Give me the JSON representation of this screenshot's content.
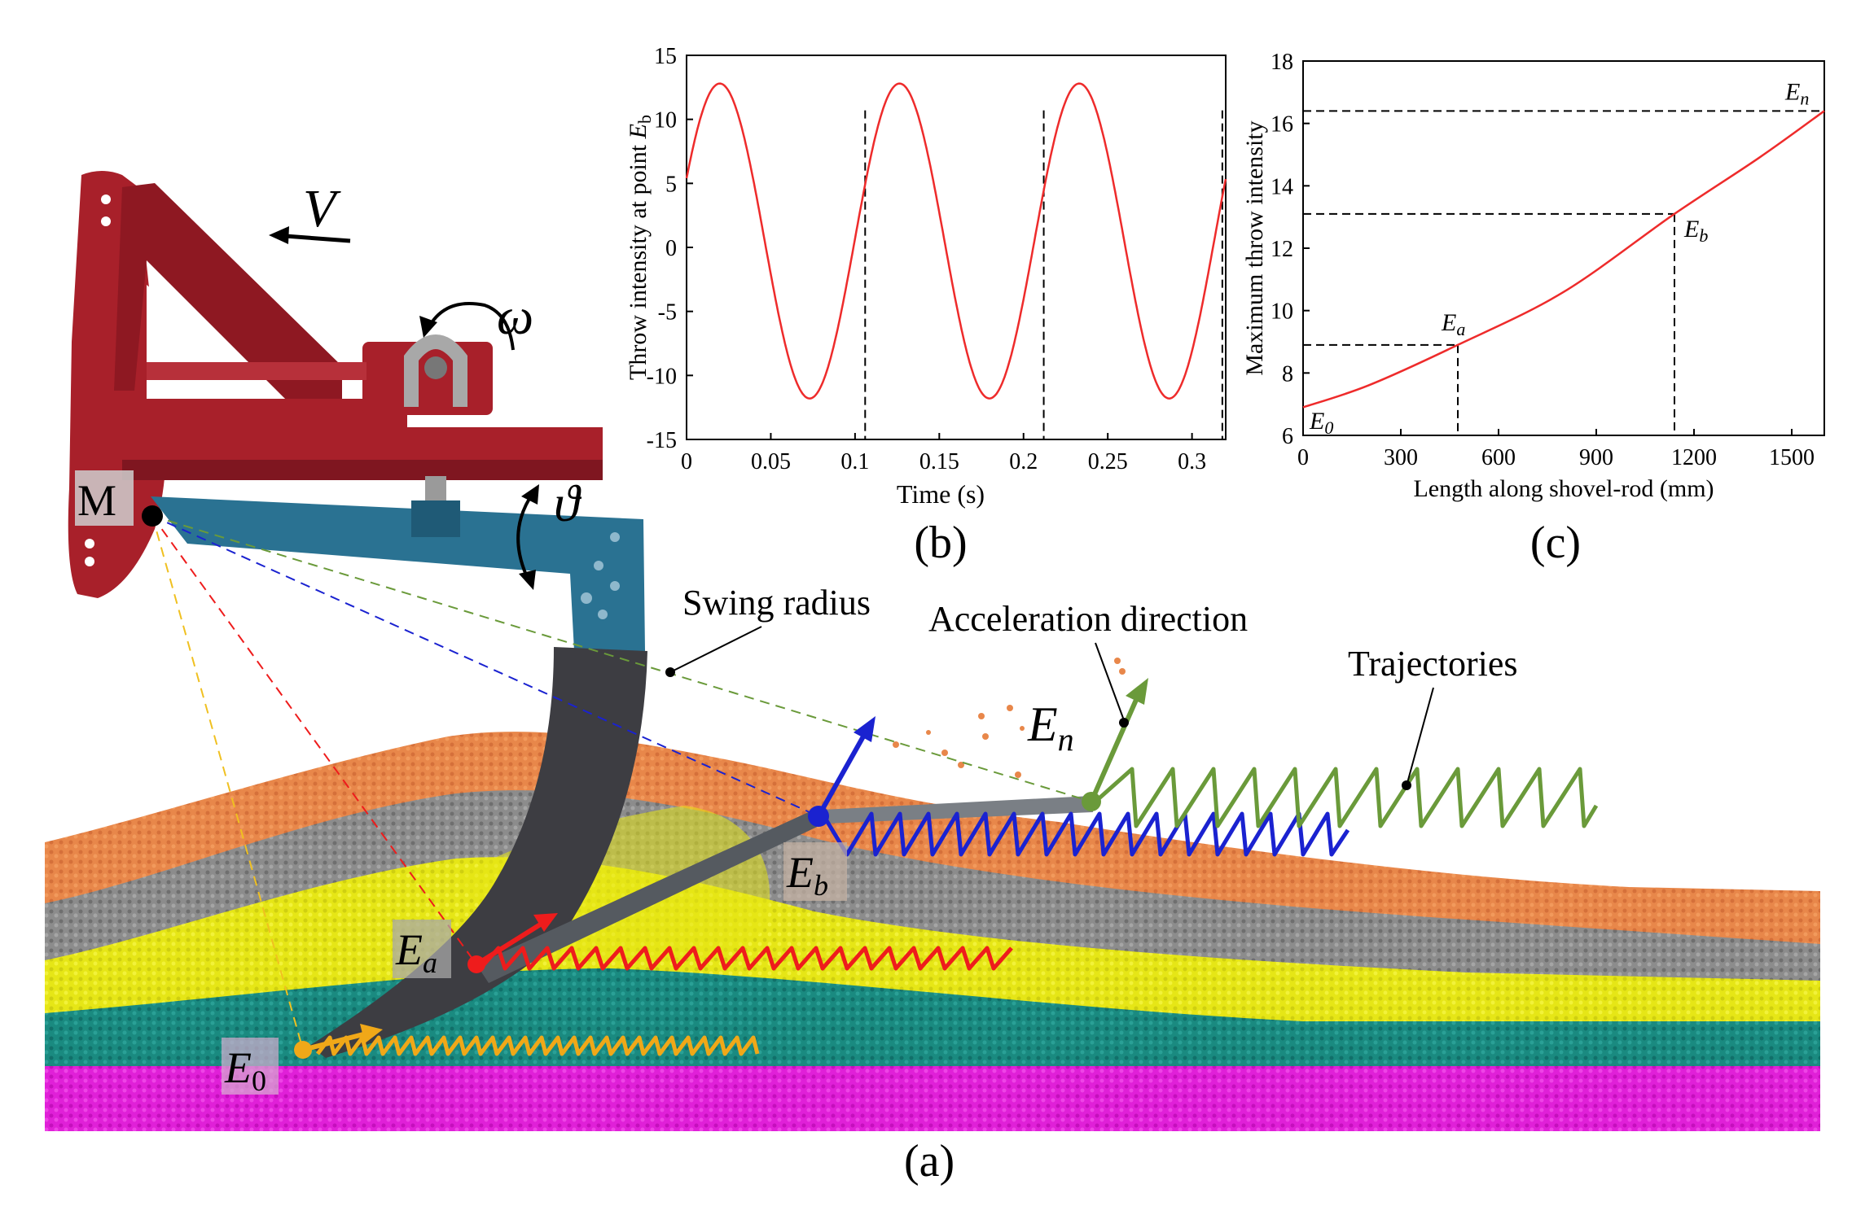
{
  "figure": {
    "panel_a": {
      "caption": "(a)",
      "labels": {
        "pivot": "M",
        "velocity": "V",
        "omega": "ω",
        "theta": "ϑ",
        "e0_base": "E",
        "e0_sub": "0",
        "ea_base": "E",
        "ea_sub": "a",
        "eb_base": "E",
        "eb_sub": "b",
        "en_base": "E",
        "en_sub": "n"
      },
      "annotations": {
        "swing_radius": "Swing radius",
        "acceleration_direction": "Acceleration direction",
        "trajectories": "Trajectories"
      },
      "soil_layer_colors": [
        "#e8874a",
        "#8c8c8c",
        "#e6e616",
        "#1a8a80",
        "#e020d8"
      ],
      "point_colors": {
        "E0": "#f0a818",
        "Ea": "#ee1c1c",
        "Eb": "#1a22d0",
        "En": "#6a9a3a"
      },
      "frame_color": "#a8202a",
      "arm_color": "#2a7292",
      "shovel_color": "#3d3d42"
    }
  },
  "chart_data": [
    {
      "panel": "b",
      "caption": "(b)",
      "type": "line",
      "xlabel": "Time (s)",
      "ylabel_main": "Throw intensity at point ",
      "ylabel_sym": "E",
      "ylabel_sub": "b",
      "xlim": [
        0,
        0.32
      ],
      "ylim": [
        -15,
        15
      ],
      "xticks": [
        0,
        0.05,
        0.1,
        0.15,
        0.2,
        0.25,
        0.3
      ],
      "xtick_labels": [
        "0",
        "0.05",
        "0.1",
        "0.15",
        "0.2",
        "0.25",
        "0.3"
      ],
      "yticks": [
        15,
        10,
        5,
        0,
        -5,
        -10,
        -15
      ],
      "ytick_labels": [
        "15",
        "10",
        "5",
        "0",
        "-5",
        "-10",
        "-15"
      ],
      "series": [
        {
          "name": "throw intensity",
          "amplitude": 12.3,
          "offset": 0.5,
          "period": 0.1067,
          "phase_at_zero": 0.41,
          "color": "#ee2b2b"
        }
      ],
      "vlines": [
        0.106,
        0.212,
        0.318
      ]
    },
    {
      "panel": "c",
      "caption": "(c)",
      "type": "line",
      "xlabel": "Length along shovel-rod (mm)",
      "ylabel": "Maximum throw intensity",
      "xlim": [
        0,
        1600
      ],
      "ylim": [
        6,
        18
      ],
      "xticks": [
        0,
        300,
        600,
        900,
        1200,
        1500
      ],
      "xtick_labels": [
        "0",
        "300",
        "600",
        "900",
        "1200",
        "1500"
      ],
      "yticks": [
        18,
        16,
        14,
        12,
        10,
        8,
        6
      ],
      "ytick_labels": [
        "18",
        "16",
        "14",
        "12",
        "10",
        "8",
        "6"
      ],
      "series": [
        {
          "name": "max throw intensity",
          "x": [
            0,
            200,
            475,
            800,
            1140,
            1400,
            1600
          ],
          "y": [
            6.9,
            7.6,
            8.9,
            10.6,
            13.1,
            14.9,
            16.4
          ],
          "color": "#ee2b2b"
        }
      ],
      "points": [
        {
          "label_base": "E",
          "label_sub": "0",
          "x": 0,
          "y": 6.9
        },
        {
          "label_base": "E",
          "label_sub": "a",
          "x": 475,
          "y": 8.9
        },
        {
          "label_base": "E",
          "label_sub": "b",
          "x": 1140,
          "y": 13.1
        },
        {
          "label_base": "E",
          "label_sub": "n",
          "x": 1600,
          "y": 16.4
        }
      ]
    }
  ]
}
